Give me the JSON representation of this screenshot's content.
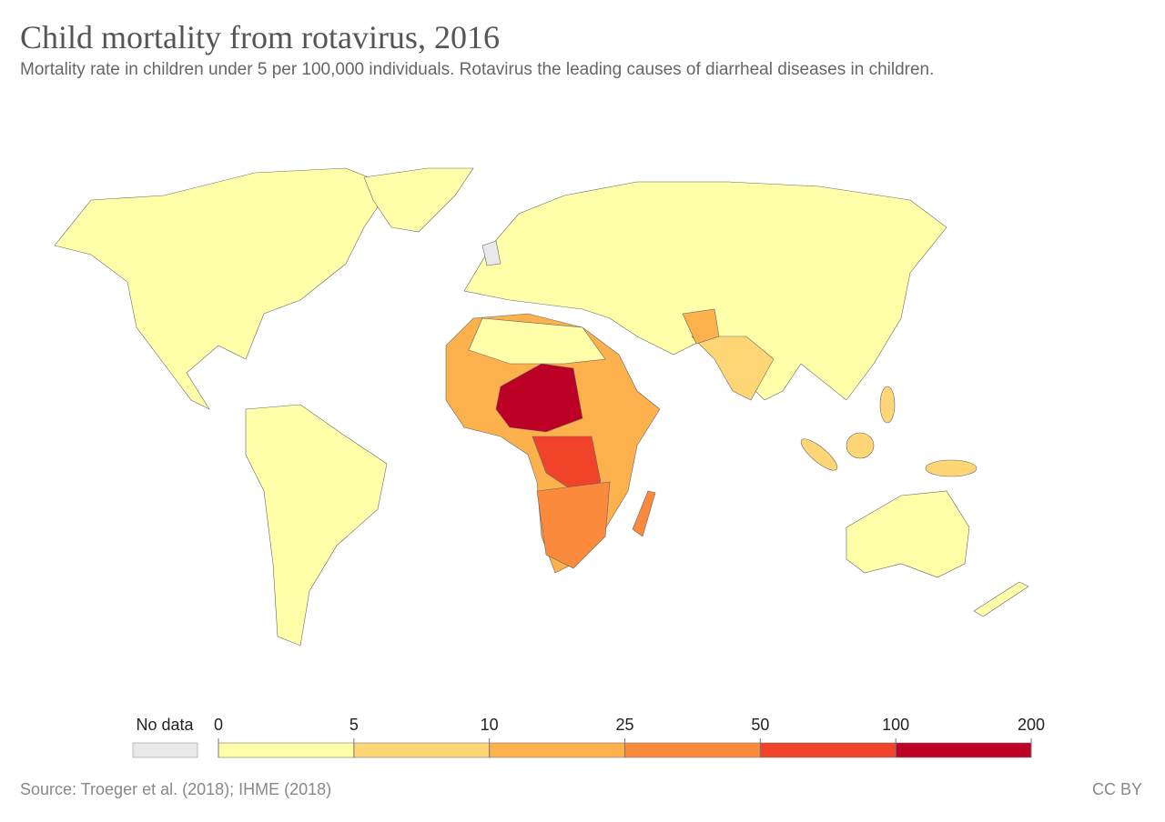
{
  "header": {
    "title": "Child mortality from rotavirus, 2016",
    "subtitle": "Mortality rate in children under 5 per 100,000 individuals. Rotavirus the leading causes of diarrheal diseases in children."
  },
  "legend": {
    "no_data_label": "No data",
    "no_data_color": "#e8e8e8",
    "ticks": [
      0,
      5,
      10,
      25,
      50,
      100,
      200
    ],
    "colors": [
      "#ffffaa",
      "#fed676",
      "#fdb14d",
      "#fb8a3c",
      "#f0432a",
      "#bd0026"
    ]
  },
  "footer": {
    "source": "Source: Troeger et al. (2018); IHME (2018)",
    "license": "CC BY"
  }
}
